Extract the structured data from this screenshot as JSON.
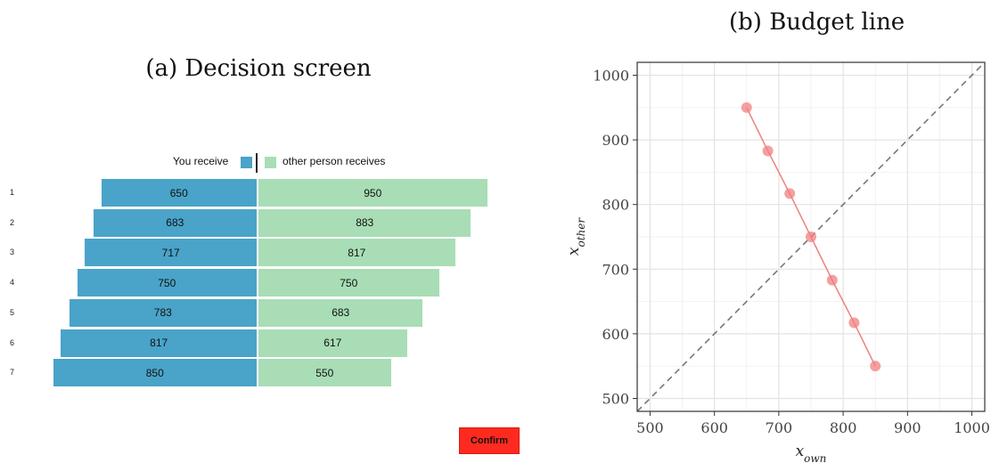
{
  "left_panel": {
    "title": "(a) Decision screen",
    "legend": {
      "own_label": "You receive",
      "other_label": "other person receives",
      "own_color": "#4aa3c8",
      "other_color": "#a8ddb5"
    },
    "rows": [
      {
        "num": "1",
        "own": "650",
        "other": "950"
      },
      {
        "num": "2",
        "own": "683",
        "other": "883"
      },
      {
        "num": "3",
        "own": "717",
        "other": "817"
      },
      {
        "num": "4",
        "own": "750",
        "other": "750"
      },
      {
        "num": "5",
        "own": "783",
        "other": "683"
      },
      {
        "num": "6",
        "own": "817",
        "other": "617"
      },
      {
        "num": "7",
        "own": "850",
        "other": "550"
      }
    ],
    "confirm_label": "Confirm",
    "confirm_color": "#ff2a1f"
  },
  "right_panel": {
    "title": "(b) Budget line"
  },
  "chart_data": {
    "type": "scatter",
    "xlabel": "x_own",
    "ylabel": "x_other",
    "xlim": [
      480,
      1020
    ],
    "ylim": [
      480,
      1020
    ],
    "xticks": [
      "500",
      "600",
      "700",
      "800",
      "900",
      "1000"
    ],
    "yticks": [
      "500",
      "600",
      "700",
      "800",
      "900",
      "1000"
    ],
    "grid": true,
    "series": [
      {
        "x": [
          650,
          683,
          717,
          750,
          783,
          817,
          850
        ],
        "y": [
          950,
          883,
          817,
          750,
          683,
          617,
          550
        ],
        "color": "#f08080"
      }
    ],
    "reference_line": {
      "style": "dashed",
      "slope": 1,
      "color": "#777777"
    }
  }
}
